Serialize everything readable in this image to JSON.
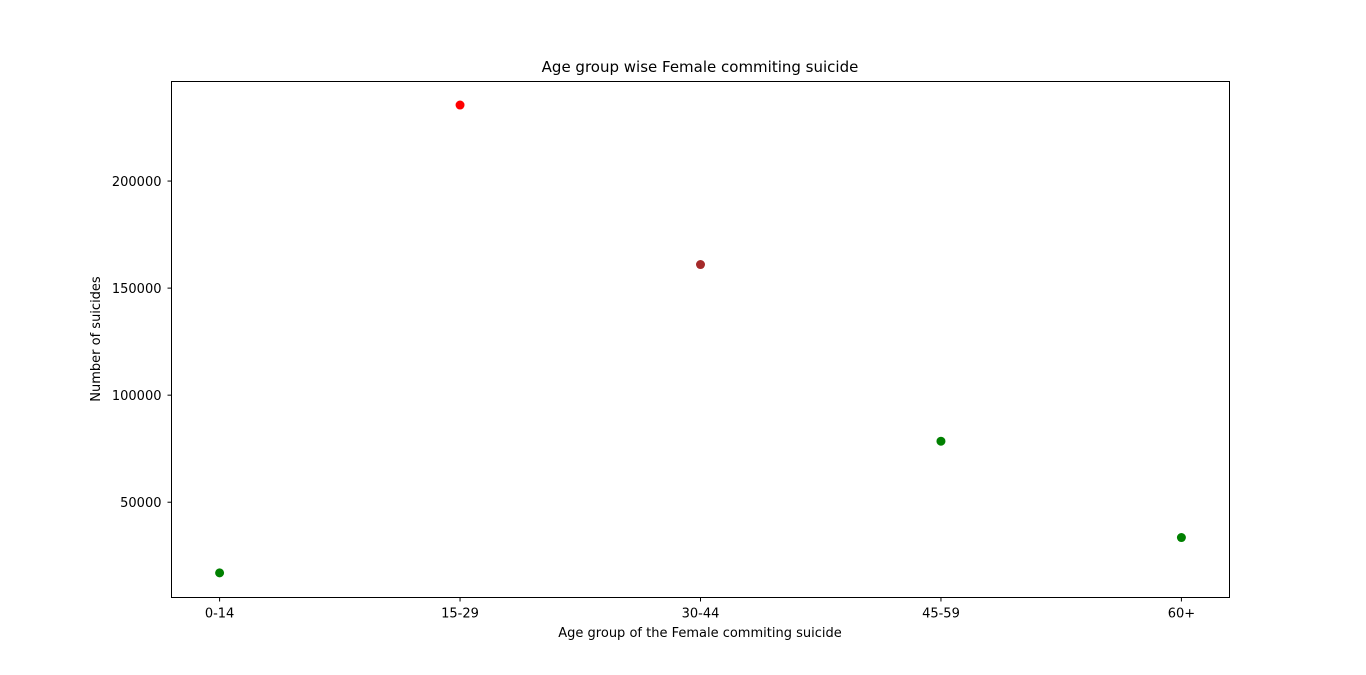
{
  "chart_data": {
    "type": "scatter",
    "title": "Age group wise Female commiting suicide",
    "xlabel": "Age group of the Female commiting suicide",
    "ylabel": "Number of suicides",
    "categories": [
      "0-14",
      "15-29",
      "30-44",
      "45-59",
      "60+"
    ],
    "values": [
      17000,
      235500,
      161000,
      78500,
      33500
    ],
    "point_colors": [
      "#008000",
      "#ff0000",
      "#a52a2a",
      "#008000",
      "#008000"
    ],
    "ylim": [
      5500,
      246500
    ],
    "yticks": [
      50000,
      100000,
      150000,
      200000
    ],
    "ytick_labels": [
      "50000",
      "100000",
      "150000",
      "200000"
    ],
    "grid": false,
    "legend": "none"
  }
}
